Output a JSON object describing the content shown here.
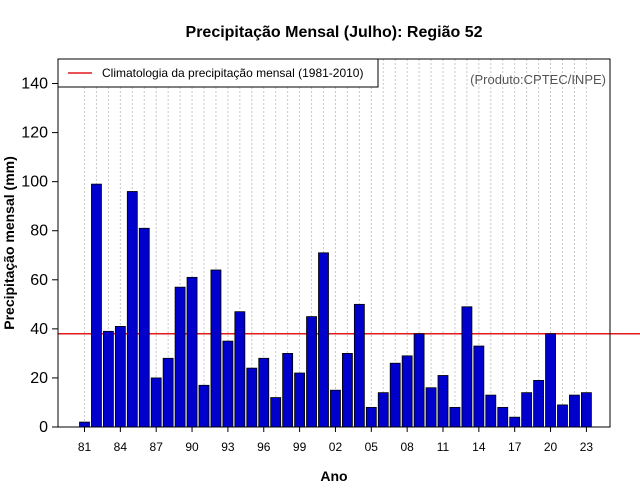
{
  "chart_data": {
    "type": "bar",
    "title": "Precipitação Mensal (Julho): Região 52",
    "xlabel": "Ano",
    "ylabel": "Precipitação mensal (mm)",
    "ylim": [
      0,
      150
    ],
    "yticks": [
      0,
      20,
      40,
      60,
      80,
      100,
      120,
      140
    ],
    "categories": [
      "81",
      "82",
      "83",
      "84",
      "85",
      "86",
      "87",
      "88",
      "89",
      "90",
      "91",
      "92",
      "93",
      "94",
      "95",
      "96",
      "97",
      "98",
      "99",
      "00",
      "01",
      "02",
      "03",
      "04",
      "05",
      "06",
      "07",
      "08",
      "09",
      "10",
      "11",
      "12",
      "13",
      "14",
      "15",
      "16",
      "17",
      "18",
      "19",
      "20",
      "21",
      "22",
      "23"
    ],
    "xtick_labels": [
      "81",
      "84",
      "87",
      "90",
      "93",
      "96",
      "99",
      "02",
      "05",
      "08",
      "11",
      "14",
      "17",
      "20",
      "23"
    ],
    "values": [
      2,
      99,
      39,
      41,
      96,
      81,
      20,
      28,
      57,
      61,
      17,
      64,
      35,
      47,
      24,
      28,
      12,
      30,
      22,
      45,
      71,
      15,
      30,
      50,
      8,
      14,
      26,
      29,
      38,
      16,
      21,
      8,
      49,
      33,
      13,
      8,
      4,
      14,
      19,
      38,
      9,
      13,
      14
    ],
    "bar_color": "#0000cd",
    "reference_line": {
      "value": 38,
      "label": "Climatologia da precipitação mensal (1981-2010)",
      "color": "#e31a1c"
    },
    "legend_position": "top-left",
    "grid": "vertical dotted",
    "credit": "(Produto:CPTEC/INPE)"
  }
}
